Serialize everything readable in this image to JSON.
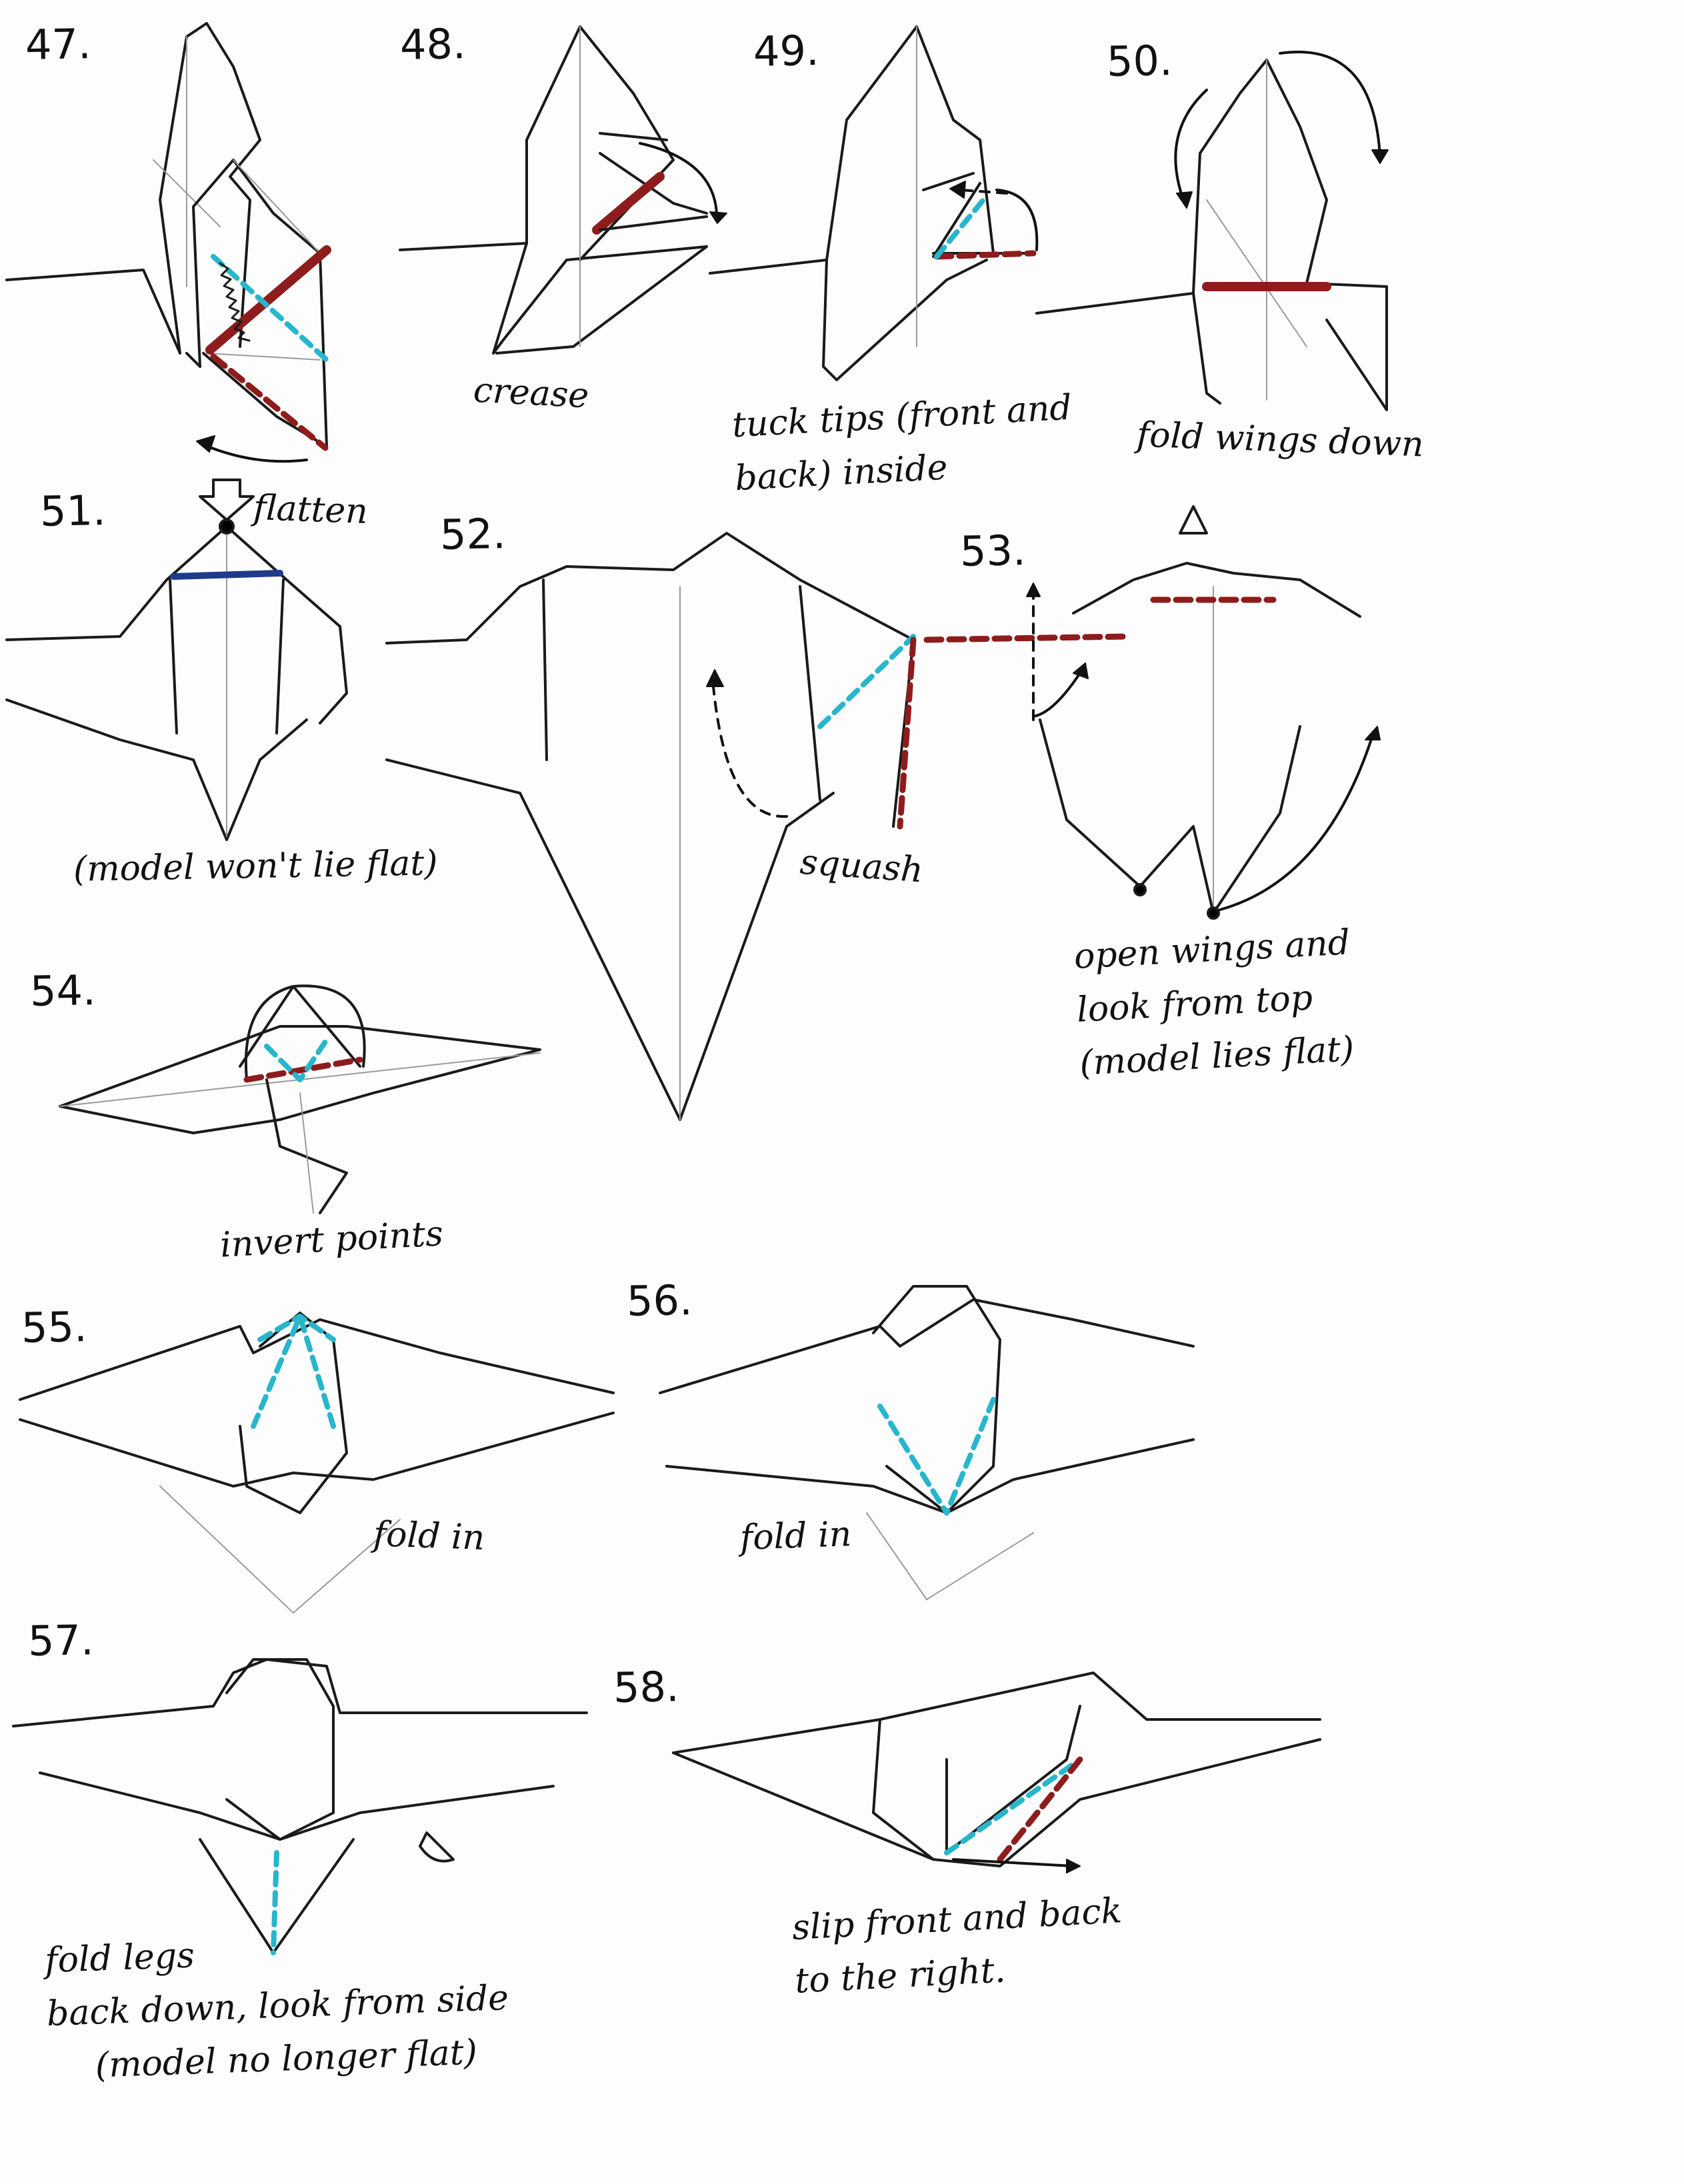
{
  "steps": {
    "s47": {
      "number": "47."
    },
    "s48": {
      "number": "48.",
      "caption": "crease"
    },
    "s49": {
      "number": "49.",
      "caption_line1": "tuck tips (front and",
      "caption_line2": "back) inside"
    },
    "s50": {
      "number": "50.",
      "caption": "fold wings down"
    },
    "s51": {
      "number": "51.",
      "callout": "flatten",
      "caption": "(model won't lie flat)"
    },
    "s52": {
      "number": "52.",
      "caption": "squash"
    },
    "s53": {
      "number": "53.",
      "caption_line1": "open wings and",
      "caption_line2": "look from top",
      "caption_line3": "(model lies flat)"
    },
    "s54": {
      "number": "54.",
      "caption": "invert points"
    },
    "s55": {
      "number": "55.",
      "caption": "fold in"
    },
    "s56": {
      "number": "56.",
      "caption": "fold in"
    },
    "s57": {
      "number": "57.",
      "caption_line1": "fold legs",
      "caption_line2": "back down, look from side",
      "caption_line3": "(model no longer flat)"
    },
    "s58": {
      "number": "58.",
      "caption_line1": "slip front and back",
      "caption_line2": "to the right."
    }
  },
  "colors": {
    "ink": "#1a1a1a",
    "pencil": "#9a9a9a",
    "valley_red": "#8e1c1c",
    "mountain_cyan": "#27b6cc",
    "paper": "#fdfdfd"
  }
}
